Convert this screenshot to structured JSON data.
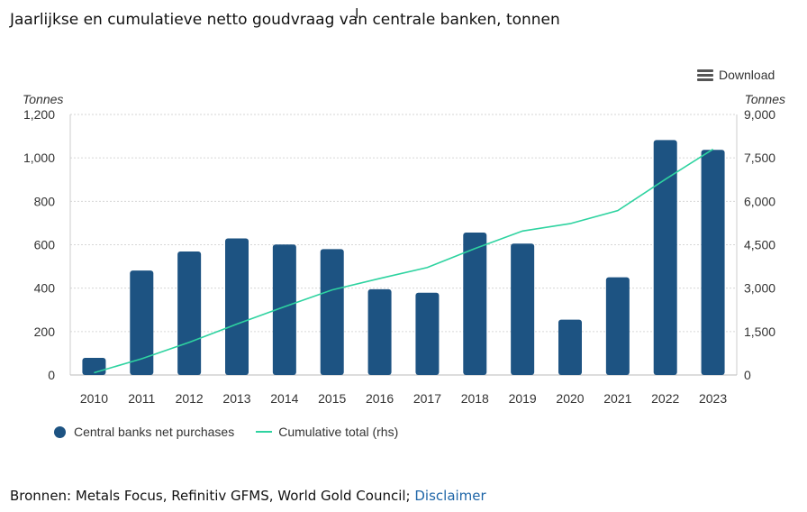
{
  "title": "Jaarlijkse en cumulatieve netto goudvraag van centrale banken, tonnen",
  "download_label": "Download",
  "source": {
    "text": "Bronnen: Metals Focus, Refinitiv GFMS, World Gold Council; ",
    "link": "Disclaimer"
  },
  "colors": {
    "bar": "#1d5382",
    "line": "#2ed3a0",
    "grid": "#d6d6d6"
  },
  "chart_data": {
    "type": "bar",
    "categories": [
      "2010",
      "2011",
      "2012",
      "2013",
      "2014",
      "2015",
      "2016",
      "2017",
      "2018",
      "2019",
      "2020",
      "2021",
      "2022",
      "2023"
    ],
    "series": [
      {
        "name": "Central banks net purchases",
        "type": "bar",
        "axis": "left",
        "values": [
          79,
          481,
          569,
          629,
          601,
          580,
          395,
          379,
          656,
          605,
          255,
          450,
          1082,
          1037
        ]
      },
      {
        "name": "Cumulative total (rhs)",
        "type": "line",
        "axis": "right",
        "values": [
          79,
          560,
          1129,
          1758,
          2359,
          2939,
          3334,
          3713,
          4369,
          4974,
          5229,
          5679,
          6761,
          7798
        ]
      }
    ],
    "left_axis": {
      "label": "Tonnes",
      "min": 0,
      "max": 1200,
      "ticks": [
        "0",
        "200",
        "400",
        "600",
        "800",
        "1,000",
        "1,200"
      ]
    },
    "right_axis": {
      "label": "Tonnes",
      "min": 0,
      "max": 9000,
      "ticks": [
        "0",
        "1,500",
        "3,000",
        "4,500",
        "6,000",
        "7,500",
        "9,000"
      ]
    },
    "grid": true,
    "legend_position": "bottom-left"
  }
}
